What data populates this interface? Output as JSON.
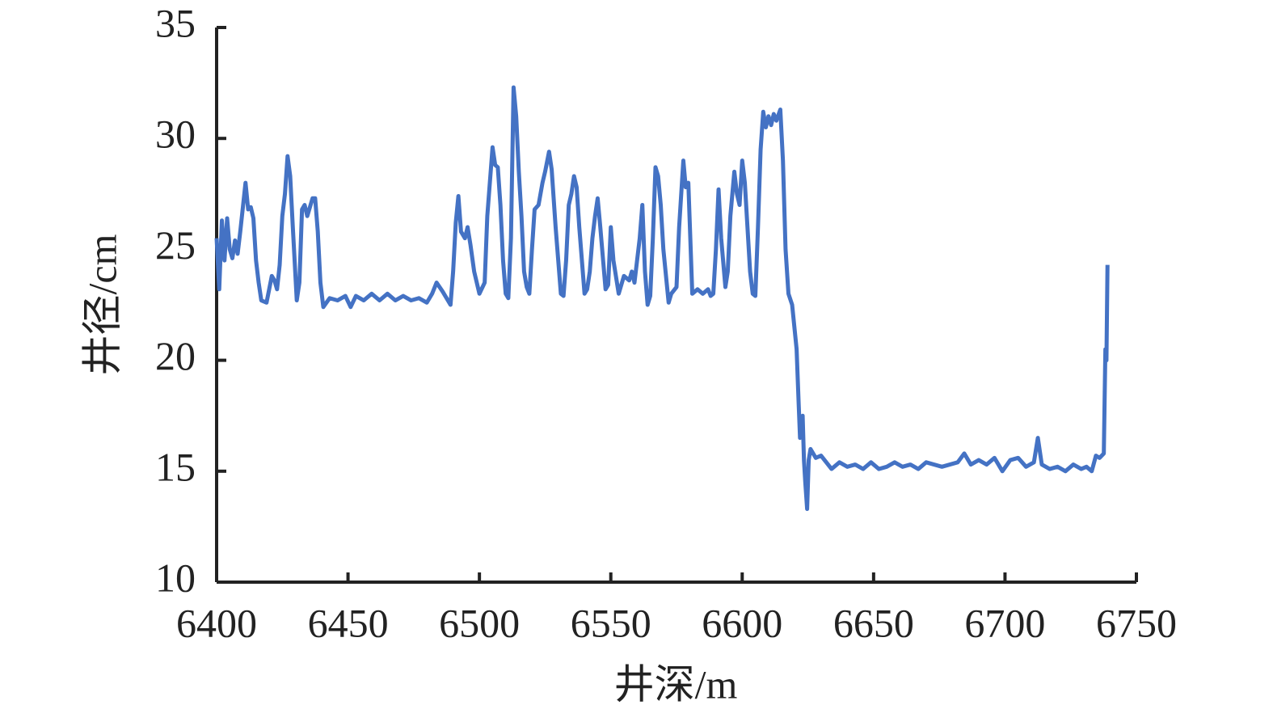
{
  "chart_data": {
    "type": "line",
    "x_label": "井深/m",
    "y_label": "井径/cm",
    "xlim": [
      6400,
      6750
    ],
    "xticks": [
      6400,
      6450,
      6500,
      6550,
      6600,
      6650,
      6700,
      6750
    ],
    "ylim": [
      10,
      35
    ],
    "yticks": [
      10,
      15,
      20,
      25,
      30,
      35
    ],
    "color": "#4472c4",
    "x": [
      6400,
      6401,
      6402,
      6403,
      6404,
      6405,
      6406,
      6407,
      6408,
      6409,
      6411,
      6412,
      6413,
      6414,
      6415,
      6416,
      6417,
      6419,
      6421,
      6422,
      6423,
      6424,
      6425,
      6426,
      6427,
      6428,
      6429,
      6430.5,
      6431.5,
      6432.5,
      6433.5,
      6434.5,
      6435.5,
      6436.5,
      6437.5,
      6438.5,
      6439.5,
      6440.6,
      6443,
      6446,
      6449,
      6451,
      6453,
      6456,
      6459,
      6462,
      6465,
      6468,
      6471,
      6474,
      6477,
      6480,
      6482,
      6483.7,
      6486,
      6489,
      6490,
      6491,
      6492,
      6493,
      6494.5,
      6495.5,
      6496.6,
      6498,
      6500,
      6502,
      6503,
      6505,
      6506,
      6507,
      6508,
      6509,
      6510,
      6511,
      6512,
      6513,
      6514,
      6515,
      6516,
      6517,
      6518,
      6519,
      6520,
      6521,
      6522.5,
      6524,
      6525,
      6526.5,
      6527.5,
      6529,
      6531,
      6532,
      6533,
      6534,
      6535,
      6536,
      6537,
      6538,
      6540,
      6541,
      6542,
      6543,
      6544,
      6545,
      6546,
      6548,
      6549,
      6550,
      6551,
      6553,
      6555,
      6557,
      6558,
      6559,
      6560,
      6561,
      6562,
      6563,
      6564,
      6565,
      6566,
      6567,
      6568,
      6569,
      6570,
      6572,
      6573,
      6575,
      6576,
      6577.6,
      6578.5,
      6579.5,
      6581,
      6583,
      6585,
      6587,
      6588,
      6589,
      6590,
      6591,
      6592,
      6593.6,
      6594.5,
      6595.5,
      6597,
      6598,
      6599,
      6600,
      6601,
      6602,
      6603,
      6604,
      6605,
      6606,
      6607,
      6608,
      6609,
      6610,
      6611,
      6612,
      6613,
      6614.5,
      6615.5,
      6616.5,
      6617.6,
      6619,
      6620.7,
      6621.5,
      6622,
      6623,
      6623.5,
      6624,
      6624.7,
      6625.3,
      6626,
      6628,
      6630,
      6632,
      6634,
      6637,
      6640,
      6643,
      6646,
      6649,
      6652,
      6655,
      6658,
      6661,
      6664,
      6667,
      6670,
      6673,
      6676,
      6679,
      6682,
      6684.5,
      6687,
      6690,
      6693,
      6696,
      6699,
      6702,
      6705,
      6708,
      6711,
      6712.5,
      6714,
      6717,
      6720,
      6723,
      6726,
      6729,
      6731,
      6733,
      6734.6,
      6736,
      6737.6,
      6738.2,
      6738.6,
      6739
    ],
    "values": [
      25.5,
      23.2,
      26.3,
      24.5,
      26.4,
      25.0,
      24.6,
      25.4,
      24.8,
      25.8,
      28.0,
      26.8,
      26.9,
      26.4,
      24.5,
      23.5,
      22.7,
      22.6,
      23.8,
      23.6,
      23.2,
      24.3,
      26.5,
      27.5,
      29.2,
      28.3,
      26.0,
      22.7,
      23.5,
      26.8,
      27.0,
      26.5,
      26.9,
      27.3,
      27.3,
      25.8,
      23.5,
      22.4,
      22.8,
      22.7,
      22.9,
      22.4,
      22.9,
      22.7,
      23.0,
      22.7,
      23.0,
      22.7,
      22.9,
      22.7,
      22.8,
      22.6,
      23.0,
      23.5,
      23.1,
      22.5,
      24.0,
      26.2,
      27.4,
      25.8,
      25.5,
      26.0,
      25.2,
      24.0,
      23.0,
      23.5,
      26.5,
      29.6,
      28.8,
      28.7,
      27.0,
      24.5,
      23.0,
      22.8,
      25.5,
      32.3,
      31.0,
      28.5,
      26.5,
      24.0,
      23.3,
      23.0,
      25.0,
      26.8,
      27.0,
      28.0,
      28.5,
      29.4,
      28.6,
      26.0,
      23.0,
      22.9,
      24.5,
      27.0,
      27.5,
      28.3,
      27.8,
      26.0,
      23.0,
      23.2,
      24.0,
      25.5,
      26.5,
      27.3,
      26.0,
      23.2,
      23.4,
      26.0,
      24.5,
      23.0,
      23.8,
      23.6,
      24.0,
      23.5,
      24.5,
      25.5,
      27.0,
      24.0,
      22.5,
      22.9,
      25.5,
      28.7,
      28.3,
      27.0,
      25.0,
      22.6,
      23.0,
      23.3,
      26.0,
      29.0,
      27.8,
      28.0,
      23.0,
      23.2,
      23.0,
      23.2,
      22.9,
      23.0,
      25.0,
      27.7,
      25.5,
      23.3,
      24.0,
      26.5,
      28.5,
      27.5,
      27.0,
      29.0,
      28.0,
      26.0,
      24.0,
      23.0,
      22.9,
      26.0,
      29.5,
      31.2,
      30.5,
      31.0,
      30.6,
      31.1,
      30.8,
      31.3,
      29.0,
      25.0,
      23.0,
      22.5,
      20.5,
      18.0,
      16.5,
      17.5,
      15.5,
      14.5,
      13.3,
      15.5,
      16.0,
      15.6,
      15.7,
      15.4,
      15.1,
      15.4,
      15.2,
      15.3,
      15.1,
      15.4,
      15.1,
      15.2,
      15.4,
      15.2,
      15.3,
      15.1,
      15.4,
      15.3,
      15.2,
      15.3,
      15.4,
      15.8,
      15.3,
      15.5,
      15.3,
      15.6,
      15.0,
      15.5,
      15.6,
      15.2,
      15.4,
      16.5,
      15.3,
      15.1,
      15.2,
      15.0,
      15.3,
      15.1,
      15.2,
      15.0,
      15.7,
      15.6,
      15.8,
      20.5,
      20.0,
      24.3
    ]
  }
}
